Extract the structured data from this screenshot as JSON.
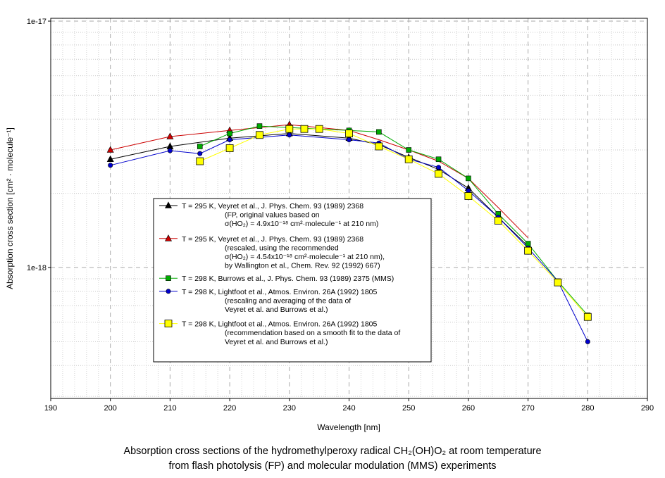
{
  "chart_data": {
    "type": "line",
    "xlabel": "Wavelength [nm]",
    "ylabel": "Absorption cross section [cm² · molecule⁻¹]",
    "xlim": [
      190,
      290
    ],
    "ylim": [
      3e-19,
      1e-17
    ],
    "yscale": "log",
    "x_ticks": [
      "190",
      "200",
      "210",
      "220",
      "230",
      "240",
      "250",
      "260",
      "270",
      "280",
      "290"
    ],
    "y_tick_labels": [
      {
        "value": 1e-17,
        "label": "1e-17"
      },
      {
        "value": 1e-18,
        "label": "1e-18"
      }
    ],
    "grid": true,
    "legend_position": "lower-left",
    "series": [
      {
        "name": "Veyret FP original",
        "color": "#000000",
        "marker": "triangle",
        "x": [
          200,
          210,
          220,
          230,
          240,
          245,
          250,
          255,
          260,
          265,
          270
        ],
        "y": [
          2.75e-18,
          3.1e-18,
          3.35e-18,
          3.5e-18,
          3.35e-18,
          3.15e-18,
          2.8e-18,
          2.5e-18,
          2.1e-18,
          1.6e-18,
          1.22e-18
        ],
        "legend_lines": [
          "T = 295 K,  Veyret et al., J. Phys. Chem. 93 (1989) 2368",
          "(FP, original values based on",
          "σ(HO₂) = 4.9x10⁻¹⁸ cm²·molecule⁻¹ at 210 nm)"
        ]
      },
      {
        "name": "Veyret rescaled",
        "color": "#cc0000",
        "marker": "triangle",
        "x": [
          200,
          210,
          220,
          230
        ],
        "y": [
          3e-18,
          3.4e-18,
          3.6e-18,
          3.8e-18
        ],
        "line_x": [
          200,
          210,
          220,
          230,
          240,
          245,
          250,
          255,
          260,
          265,
          270
        ],
        "line_y": [
          3e-18,
          3.4e-18,
          3.6e-18,
          3.8e-18,
          3.6e-18,
          3.3e-18,
          3e-18,
          2.7e-18,
          2.3e-18,
          1.75e-18,
          1.32e-18
        ],
        "legend_lines": [
          "T = 295 K,  Veyret et al., J. Phys. Chem. 93 (1989) 2368",
          "(rescaled, using the recommended",
          "σ(HO₂) = 4.54x10⁻¹⁸ cm²·molecule⁻¹ at 210 nm),",
          "by Wallington et al., Chem. Rev. 92 (1992) 667)"
        ]
      },
      {
        "name": "Burrows MMS",
        "color": "#00aa00",
        "marker": "square-small",
        "x": [
          215,
          220,
          225,
          230,
          235,
          240,
          245,
          250,
          255,
          260,
          265,
          270,
          275,
          280
        ],
        "y": [
          3.1e-18,
          3.5e-18,
          3.75e-18,
          3.7e-18,
          3.65e-18,
          3.6e-18,
          3.55e-18,
          3e-18,
          2.75e-18,
          2.3e-18,
          1.65e-18,
          1.25e-18,
          8.8e-19,
          6.4e-19
        ],
        "legend_lines": [
          "T = 298 K, Burrows et al., J. Phys. Chem. 93 (1989) 2375 (MMS)"
        ]
      },
      {
        "name": "Lightfoot rescaled averaged",
        "color": "#0000cc",
        "marker": "circle",
        "x": [
          200,
          210,
          215,
          220,
          230,
          240,
          245,
          250,
          255,
          260,
          265,
          270,
          275,
          280
        ],
        "y": [
          2.6e-18,
          2.98e-18,
          2.9e-18,
          3.3e-18,
          3.45e-18,
          3.3e-18,
          3.2e-18,
          2.75e-18,
          2.55e-18,
          2.05e-18,
          1.6e-18,
          1.2e-18,
          8.8e-19,
          5e-19
        ],
        "legend_lines": [
          "T = 298 K, Lightfoot et al., Atmos. Environ. 26A (1992) 1805",
          "(rescaling and averaging of the data of",
          "Veyret et al. and Burrows et al.)"
        ]
      },
      {
        "name": "Lightfoot recommendation",
        "color": "#ffff00",
        "marker": "square-large",
        "x": [
          215,
          220,
          225,
          230,
          232.5,
          235,
          240,
          245,
          250,
          255,
          260,
          265,
          270,
          275,
          280
        ],
        "y": [
          2.7e-18,
          3.05e-18,
          3.45e-18,
          3.65e-18,
          3.65e-18,
          3.65e-18,
          3.5e-18,
          3.1e-18,
          2.75e-18,
          2.4e-18,
          1.95e-18,
          1.55e-18,
          1.17e-18,
          8.7e-19,
          6.3e-19
        ],
        "legend_lines": [
          "T = 298 K, Lightfoot et al., Atmos. Environ. 26A (1992) 1805",
          "(recommendation based on a smooth fit to the data of",
          "Veyret et al. and Burrows et al.)"
        ]
      }
    ]
  },
  "caption": {
    "line1": "Absorption cross sections of the hydromethylperoxy radical CH₂(OH)O₂ at room temperature",
    "line2": "from flash photolysis (FP) and molecular modulation (MMS) experiments"
  }
}
